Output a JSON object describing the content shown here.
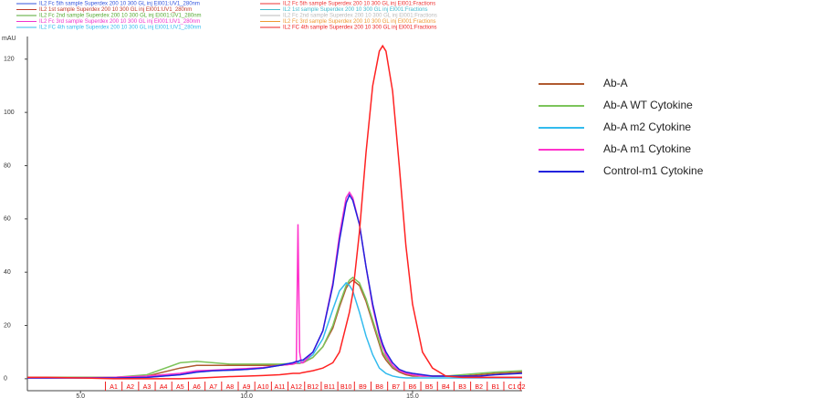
{
  "chart_data": {
    "type": "line",
    "y_label": "mAU",
    "header_legend": [
      {
        "text": "IL2 Fc 5th sample Superdex 200 10 300 GL inj El001:UV1_280nm",
        "color": "#3355dd"
      },
      {
        "text": "IL2 1st sample Superdex 200 10 300 GL inj El001:UV1_280nm",
        "color": "#c0392b"
      },
      {
        "text": "IL2 Fc 2nd sample Superdex 200 10 300 GL inj El001:UV1_280nm",
        "color": "#55aa33"
      },
      {
        "text": "IL2 Fc 3rd sample Superdex 200 10 300 GL inj El001:UV1_280nm",
        "color": "#ee33cc"
      },
      {
        "text": "IL2 FC 4th sample Superdex 200 10 300 GL inj El001:UV1_280nm",
        "color": "#33bbee"
      },
      {
        "text": "IL2 Fc 5th sample Superdex 200 10 300 GL inj El001:Fractions",
        "color": "#ee3333"
      },
      {
        "text": "IL2 1st sample Superdex 200 10 300 GL inj El001:Fractions",
        "color": "#44bbcc"
      },
      {
        "text": "IL2 Fc 2nd sample Superdex 200 10 300 GL inj El001:Fractions",
        "color": "#bbbbbb"
      },
      {
        "text": "IL2 Fc 3rd sample Superdex 200 10 300 GL inj El001:Fractions",
        "color": "#ee9933"
      },
      {
        "text": "IL2 FC 4th sample Superdex 200 10 300 GL inj El001:Fractions",
        "color": "#ee2222"
      }
    ],
    "x": [
      3.4,
      4,
      5,
      6,
      7,
      8,
      8.5,
      9,
      9.5,
      10,
      10.5,
      11,
      11.4,
      11.5,
      11.55,
      11.6,
      11.65,
      11.7,
      12,
      12.3,
      12.6,
      12.8,
      13,
      13.1,
      13.2,
      13.4,
      13.6,
      13.8,
      14,
      14.1,
      14.2,
      14.4,
      14.6,
      14.8,
      15,
      15.3,
      15.6,
      16,
      16.5,
      17,
      17.5,
      18.3
    ],
    "series": [
      {
        "name": "Ab-A",
        "color": "#b05a30",
        "values": [
          0.5,
          0.5,
          0.5,
          0.5,
          1,
          4,
          5,
          5,
          5,
          5,
          5,
          5,
          5.5,
          5.8,
          5.8,
          5.8,
          6,
          6,
          8,
          12,
          19,
          27,
          34,
          36,
          37,
          35,
          29,
          21,
          13,
          9,
          7,
          4,
          2.5,
          1.5,
          1,
          1,
          1,
          1,
          1,
          1.5,
          2,
          2.5
        ]
      },
      {
        "name": "Ab-A WT Cytokine",
        "color": "#7cc45a",
        "values": [
          0.5,
          0.5,
          0.5,
          0.5,
          1.5,
          6,
          6.5,
          6,
          5.5,
          5.5,
          5.5,
          5.5,
          5.8,
          6,
          6,
          6,
          6,
          6.2,
          8,
          12,
          20,
          28,
          35,
          37,
          38,
          36,
          30,
          22,
          14,
          10,
          8,
          4.5,
          3,
          2,
          1.5,
          1,
          1,
          1,
          1.5,
          2,
          2.5,
          3
        ]
      },
      {
        "name": "Ab-A m2 Cytokine",
        "color": "#33bbee",
        "values": [
          0.3,
          0.3,
          0.3,
          0.3,
          0.5,
          1.5,
          2.5,
          3,
          3.2,
          3.5,
          4,
          5,
          6,
          6,
          6,
          6,
          6.2,
          6.3,
          9,
          15,
          26,
          33,
          36,
          35,
          33,
          25,
          16,
          9,
          4,
          3,
          2,
          1,
          0.5,
          0.3,
          0.3,
          0.3,
          0.3,
          0.3,
          0.3,
          0.3,
          0.3,
          0.3
        ]
      },
      {
        "name": "Ab-A m1 Cytokine",
        "color": "#ff33cc",
        "values": [
          0.3,
          0.3,
          0.3,
          0.5,
          1,
          2,
          3,
          3.2,
          3.5,
          3.8,
          4.2,
          5,
          5.5,
          6,
          58,
          10,
          6,
          6,
          10,
          18,
          36,
          54,
          68,
          70,
          68,
          58,
          42,
          27,
          16,
          12,
          9,
          5,
          3,
          2,
          1.5,
          1,
          1,
          1,
          0.5,
          0.5,
          0.5,
          0.5
        ]
      },
      {
        "name": "Control-m1 Cytokine",
        "color": "#2222dd",
        "values": [
          0.3,
          0.3,
          0.3,
          0.3,
          0.5,
          1.5,
          2.5,
          3,
          3.2,
          3.5,
          4,
          5,
          6,
          6.5,
          6.5,
          6.8,
          7,
          7,
          10,
          18,
          35,
          52,
          66,
          69,
          67,
          58,
          42,
          28,
          17,
          13,
          10,
          6,
          3.5,
          2.5,
          2,
          1.5,
          1,
          1,
          1,
          1,
          1.5,
          2
        ]
      },
      {
        "color": "#ff2222",
        "values": [
          0.5,
          0.5,
          0.3,
          0,
          0,
          0,
          0.2,
          0.5,
          0.8,
          1,
          1.2,
          1.5,
          2,
          2,
          2,
          2,
          2.2,
          2.3,
          3,
          4,
          6,
          10,
          20,
          25,
          32,
          55,
          85,
          110,
          123,
          125,
          123,
          108,
          80,
          50,
          28,
          10,
          4,
          1,
          0.5,
          0.5,
          0.5,
          0.5
        ]
      }
    ],
    "fractions": {
      "color": "#ee2222",
      "labels": [
        "A1",
        "A2",
        "A3",
        "A4",
        "A5",
        "A6",
        "A7",
        "A8",
        "A9",
        "A10",
        "A11",
        "A12",
        "B12",
        "B11",
        "B10",
        "B9",
        "B8",
        "B7",
        "B6",
        "B5",
        "B4",
        "B3",
        "B2",
        "B1",
        "C1",
        "C2"
      ],
      "x": [
        5.75,
        6.25,
        6.75,
        7.25,
        7.75,
        8.25,
        8.75,
        9.25,
        9.75,
        10.25,
        10.75,
        11.25,
        11.75,
        12.25,
        12.75,
        13.25,
        13.75,
        14.25,
        14.75,
        15.25,
        15.75,
        16.25,
        16.75,
        17.25,
        17.75,
        18.25
      ]
    },
    "xlim": [
      3.4,
      18.3
    ],
    "ylim": [
      -4.5,
      128.5
    ],
    "xticks": [
      {
        "value": 5,
        "label": "5.0"
      },
      {
        "value": 10,
        "label": "10.0"
      },
      {
        "value": 15,
        "label": "15.0"
      }
    ],
    "yticks": [
      0,
      20,
      40,
      60,
      80,
      100,
      120
    ]
  }
}
